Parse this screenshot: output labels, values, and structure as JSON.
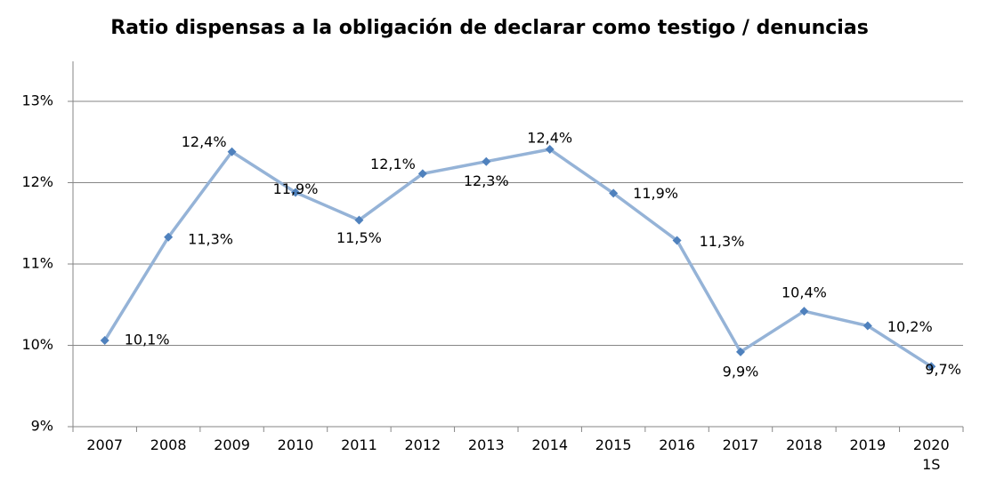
{
  "chart_data": {
    "type": "line",
    "title": "Ratio dispensas a la obligación de declarar como testigo  / denuncias",
    "categories": [
      "2007",
      "2008",
      "2009",
      "2010",
      "2011",
      "2012",
      "2013",
      "2014",
      "2015",
      "2016",
      "2017",
      "2018",
      "2019",
      "2020 1S"
    ],
    "series": [
      {
        "name": "Ratio",
        "color": "#95b3d7",
        "marker_color": "#4f81bd",
        "values": [
          10.06,
          11.33,
          12.38,
          11.88,
          11.54,
          12.11,
          12.26,
          12.41,
          11.87,
          11.29,
          9.92,
          10.42,
          10.24,
          9.74
        ],
        "value_labels": [
          "10,1%",
          "11,3%",
          "12,4%",
          "11,9%",
          "11,5%",
          "12,1%",
          "12,3%",
          "12,4%",
          "11,9%",
          "11,3%",
          "9,9%",
          "10,4%",
          "10,2%",
          "9,7%"
        ]
      }
    ],
    "ylim": [
      9,
      13
    ],
    "yticks": [
      {
        "value": 9,
        "label": "9%"
      },
      {
        "value": 10,
        "label": "10%"
      },
      {
        "value": 11,
        "label": "11%"
      },
      {
        "value": 12,
        "label": "12%"
      },
      {
        "value": 13,
        "label": "13%"
      }
    ],
    "grid": true
  }
}
